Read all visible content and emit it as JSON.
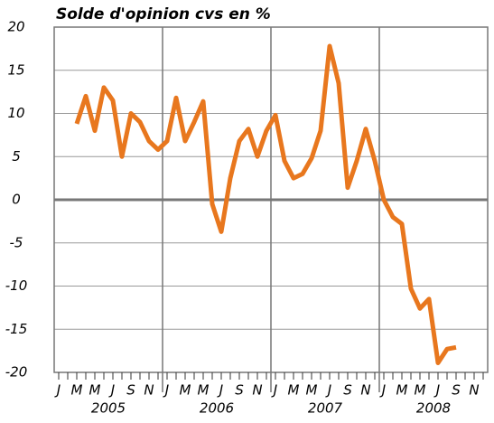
{
  "chart_data": {
    "type": "line",
    "title": "Solde d'opinion cvs en %",
    "categories": [
      "J",
      null,
      "M",
      null,
      "M",
      null,
      "J",
      null,
      "S",
      null,
      "N",
      null,
      "J",
      null,
      "M",
      null,
      "M",
      null,
      "J",
      null,
      "S",
      null,
      "N",
      null,
      "J",
      null,
      "M",
      null,
      "M",
      null,
      "J",
      null,
      "S",
      null,
      "N",
      null,
      "J",
      null,
      "M",
      null,
      "M",
      null,
      "J",
      null,
      "S",
      null,
      "N",
      null
    ],
    "years": [
      "2005",
      "2006",
      "2007",
      "2008"
    ],
    "series": [
      {
        "name": "Solde d'opinion",
        "color": "#e8771e",
        "values": [
          null,
          null,
          8.8,
          12,
          8,
          13,
          11.5,
          5,
          10,
          9,
          6.8,
          5.8,
          6.8,
          11.8,
          6.8,
          9,
          11.4,
          -0.5,
          -3.7,
          2.5,
          6.8,
          8.2,
          5,
          8,
          9.8,
          4.5,
          2.5,
          3,
          4.8,
          8,
          17.8,
          13.5,
          1.4,
          4.5,
          8.2,
          4.5,
          0,
          -2,
          -2.8,
          -10.3,
          -12.6,
          -11.5,
          -18.9,
          -17.3,
          -17.1,
          null,
          null,
          null
        ]
      }
    ],
    "ylim": [
      -20,
      20
    ],
    "yticks": [
      -20,
      -15,
      -10,
      -5,
      0,
      5,
      10,
      15,
      20
    ],
    "grid": true
  }
}
